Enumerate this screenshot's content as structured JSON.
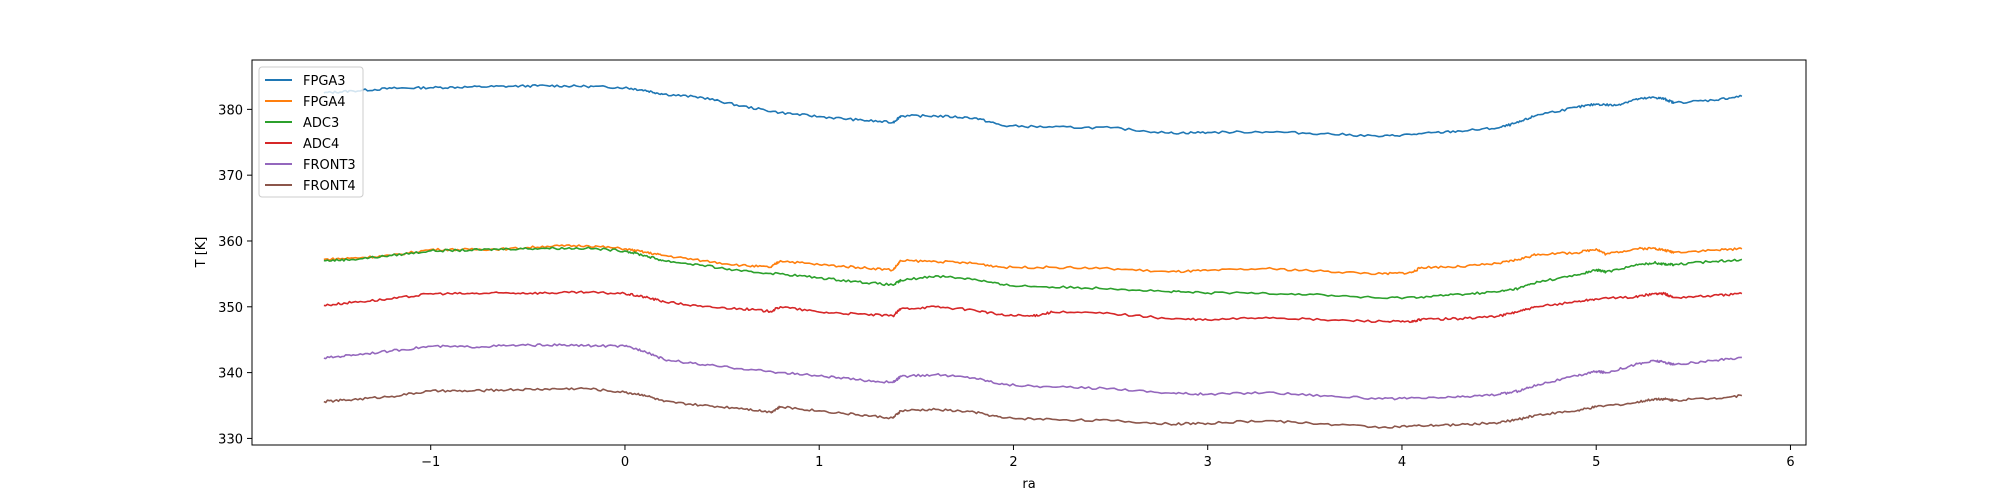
{
  "chart_data": {
    "type": "line",
    "xlabel": "ra",
    "ylabel": "T [K]",
    "xlim": [
      -1.92,
      6.08
    ],
    "ylim": [
      329,
      387.5
    ],
    "xticks": [
      -1,
      0,
      1,
      2,
      3,
      4,
      5,
      6
    ],
    "yticks": [
      330,
      340,
      350,
      360,
      370,
      380
    ],
    "grid": false,
    "legend_position": "top-left",
    "series": [
      {
        "name": "FPGA3",
        "color": "#1f77b4",
        "x": [
          -1.55,
          -1.4,
          -1.2,
          -1.0,
          -0.8,
          -0.6,
          -0.4,
          -0.2,
          0.0,
          0.1,
          0.2,
          0.4,
          0.6,
          0.8,
          1.0,
          1.2,
          1.38,
          1.42,
          1.6,
          1.8,
          1.95,
          2.2,
          2.5,
          2.8,
          3.0,
          3.3,
          3.6,
          3.9,
          4.1,
          4.3,
          4.5,
          4.6,
          4.7,
          4.9,
          5.0,
          5.1,
          5.2,
          5.3,
          5.35,
          5.4,
          5.6,
          5.75
        ],
        "y": [
          382.5,
          382.8,
          383.2,
          383.3,
          383.4,
          383.5,
          383.6,
          383.5,
          383.3,
          382.9,
          382.3,
          381.8,
          380.5,
          379.5,
          378.9,
          378.4,
          378.0,
          379.0,
          379.0,
          378.7,
          377.5,
          377.3,
          377.2,
          376.4,
          376.5,
          376.6,
          376.3,
          375.9,
          376.3,
          376.7,
          377.2,
          378.0,
          379.2,
          380.3,
          380.8,
          380.6,
          381.5,
          381.8,
          381.6,
          381.0,
          381.4,
          382.0
        ]
      },
      {
        "name": "FPGA4",
        "color": "#ff7f0e",
        "x": [
          -1.55,
          -1.4,
          -1.2,
          -1.0,
          -0.8,
          -0.6,
          -0.4,
          -0.2,
          0.0,
          0.1,
          0.2,
          0.4,
          0.6,
          0.75,
          0.8,
          1.0,
          1.2,
          1.38,
          1.42,
          1.6,
          1.8,
          1.95,
          2.2,
          2.5,
          2.8,
          3.0,
          3.3,
          3.6,
          3.9,
          4.05,
          4.1,
          4.3,
          4.5,
          4.6,
          4.7,
          4.9,
          5.0,
          5.05,
          5.2,
          5.3,
          5.35,
          5.4,
          5.6,
          5.75
        ],
        "y": [
          357.2,
          357.4,
          357.8,
          358.7,
          358.7,
          358.8,
          359.2,
          359.3,
          358.8,
          358.3,
          357.8,
          357.0,
          356.3,
          356.0,
          357.0,
          356.4,
          356.0,
          355.6,
          357.0,
          356.9,
          356.6,
          356.0,
          356.0,
          355.8,
          355.3,
          355.5,
          355.8,
          355.4,
          355.0,
          355.2,
          356.0,
          356.1,
          356.6,
          357.2,
          358.0,
          358.2,
          358.8,
          358.0,
          358.8,
          358.9,
          358.6,
          358.3,
          358.6,
          358.8
        ]
      },
      {
        "name": "ADC3",
        "color": "#2ca02c",
        "x": [
          -1.55,
          -1.4,
          -1.2,
          -1.0,
          -0.8,
          -0.6,
          -0.4,
          -0.2,
          0.0,
          0.1,
          0.2,
          0.4,
          0.6,
          0.8,
          1.0,
          1.2,
          1.38,
          1.42,
          1.6,
          1.8,
          1.95,
          2.2,
          2.5,
          2.8,
          3.0,
          3.3,
          3.6,
          3.9,
          4.1,
          4.3,
          4.5,
          4.6,
          4.7,
          4.9,
          5.0,
          5.05,
          5.2,
          5.3,
          5.35,
          5.4,
          5.6,
          5.75
        ],
        "y": [
          357.0,
          357.2,
          357.8,
          358.5,
          358.6,
          358.8,
          358.9,
          358.9,
          358.5,
          357.8,
          357.0,
          356.3,
          355.4,
          355.0,
          354.4,
          353.8,
          353.3,
          354.0,
          354.7,
          354.2,
          353.3,
          353.0,
          352.8,
          352.3,
          352.1,
          352.1,
          351.8,
          351.3,
          351.5,
          351.9,
          352.3,
          352.8,
          353.8,
          354.8,
          355.6,
          355.3,
          356.3,
          356.7,
          356.5,
          356.4,
          356.9,
          357.2
        ]
      },
      {
        "name": "ADC4",
        "color": "#d62728",
        "x": [
          -1.55,
          -1.4,
          -1.2,
          -1.0,
          -0.8,
          -0.6,
          -0.4,
          -0.2,
          0.0,
          0.1,
          0.2,
          0.4,
          0.6,
          0.75,
          0.8,
          1.0,
          1.2,
          1.38,
          1.42,
          1.6,
          1.8,
          1.95,
          2.1,
          2.2,
          2.5,
          2.8,
          3.0,
          3.3,
          3.6,
          3.9,
          4.05,
          4.1,
          4.3,
          4.5,
          4.6,
          4.7,
          4.9,
          5.0,
          5.2,
          5.3,
          5.35,
          5.4,
          5.6,
          5.75
        ],
        "y": [
          350.2,
          350.7,
          351.2,
          352.0,
          352.0,
          352.1,
          352.1,
          352.2,
          352.0,
          351.5,
          350.8,
          350.0,
          349.7,
          349.3,
          350.0,
          349.2,
          348.9,
          348.6,
          349.7,
          350.0,
          349.5,
          348.7,
          348.6,
          349.2,
          349.0,
          348.2,
          348.0,
          348.4,
          348.0,
          347.8,
          347.7,
          348.1,
          348.2,
          348.6,
          349.3,
          350.0,
          350.8,
          351.2,
          351.5,
          352.0,
          352.0,
          351.4,
          351.7,
          352.0
        ]
      },
      {
        "name": "FRONT3",
        "color": "#9467bd",
        "x": [
          -1.55,
          -1.4,
          -1.2,
          -1.0,
          -0.8,
          -0.6,
          -0.4,
          -0.2,
          0.0,
          0.1,
          0.2,
          0.4,
          0.6,
          0.8,
          1.0,
          1.2,
          1.38,
          1.42,
          1.6,
          1.8,
          1.95,
          2.2,
          2.5,
          2.8,
          3.0,
          3.3,
          3.6,
          3.9,
          4.1,
          4.3,
          4.5,
          4.6,
          4.7,
          4.9,
          5.0,
          5.05,
          5.2,
          5.3,
          5.35,
          5.4,
          5.6,
          5.75
        ],
        "y": [
          342.2,
          342.7,
          343.3,
          344.0,
          343.9,
          344.1,
          344.2,
          344.1,
          344.0,
          343.3,
          342.0,
          341.2,
          340.6,
          340.0,
          339.5,
          338.9,
          338.5,
          339.4,
          339.7,
          339.2,
          338.2,
          337.8,
          337.6,
          336.9,
          336.7,
          337.0,
          336.5,
          336.0,
          336.1,
          336.3,
          336.7,
          337.2,
          338.2,
          339.5,
          340.2,
          340.0,
          341.2,
          341.8,
          341.6,
          341.2,
          341.8,
          342.3
        ]
      },
      {
        "name": "FRONT4",
        "color": "#8c564b",
        "x": [
          -1.55,
          -1.4,
          -1.2,
          -1.0,
          -0.8,
          -0.6,
          -0.4,
          -0.2,
          0.0,
          0.1,
          0.2,
          0.4,
          0.6,
          0.75,
          0.8,
          1.0,
          1.2,
          1.38,
          1.42,
          1.6,
          1.8,
          1.95,
          2.2,
          2.5,
          2.8,
          3.0,
          3.3,
          3.6,
          3.9,
          4.1,
          4.3,
          4.5,
          4.6,
          4.7,
          4.9,
          5.0,
          5.2,
          5.3,
          5.35,
          5.4,
          5.6,
          5.75
        ],
        "y": [
          335.6,
          335.9,
          336.4,
          337.2,
          337.2,
          337.4,
          337.5,
          337.6,
          337.0,
          336.6,
          335.6,
          335.0,
          334.6,
          334.0,
          334.8,
          334.2,
          333.6,
          333.1,
          334.2,
          334.4,
          334.0,
          333.1,
          332.9,
          332.7,
          332.2,
          332.3,
          332.7,
          332.2,
          331.7,
          331.9,
          332.1,
          332.4,
          332.9,
          333.6,
          334.2,
          334.8,
          335.4,
          336.0,
          336.0,
          335.8,
          336.1,
          336.5
        ]
      }
    ]
  }
}
